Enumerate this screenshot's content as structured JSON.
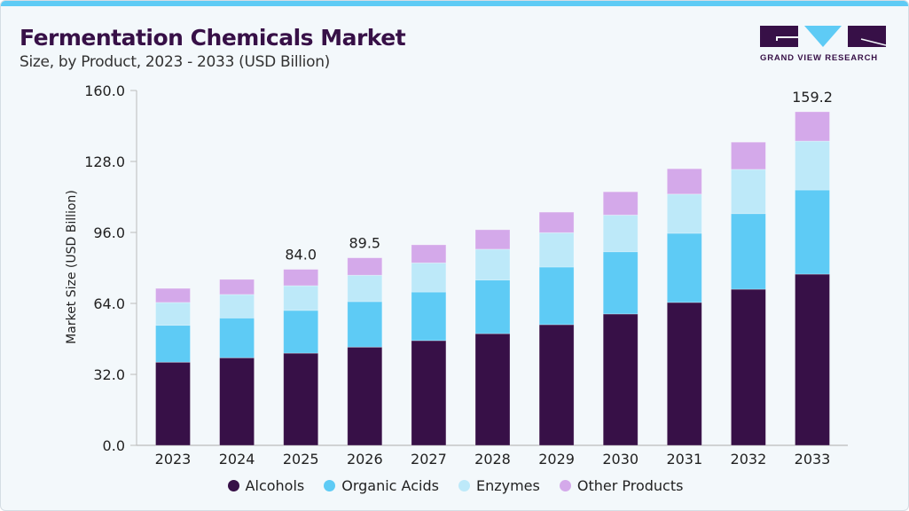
{
  "header": {
    "title": "Fermentation Chemicals Market",
    "subtitle": "Size, by Product, 2023 - 2033 (USD Billion)"
  },
  "logo": {
    "text": "GRAND VIEW RESEARCH",
    "colors": {
      "dark": "#371047",
      "accent": "#5ecbf5"
    }
  },
  "chart_data": {
    "type": "bar",
    "stacked": true,
    "title": "Fermentation Chemicals Market",
    "subtitle": "Size, by Product, 2023 - 2033 (USD Billion)",
    "xlabel": "",
    "ylabel": "Market Size (USD Billion)",
    "yticks": [
      "0.0",
      "32.0",
      "64.0",
      "96.0",
      "128.0",
      "160.0"
    ],
    "ylim": [
      0,
      160
    ],
    "grid": false,
    "legend_position": "bottom",
    "categories": [
      "2023",
      "2024",
      "2025",
      "2026",
      "2027",
      "2028",
      "2029",
      "2030",
      "2031",
      "2032",
      "2033"
    ],
    "series": [
      {
        "name": "Alcohols",
        "color": "#371047",
        "values": [
          39.7,
          41.8,
          44.0,
          46.9,
          50.0,
          53.3,
          57.6,
          62.7,
          68.2,
          74.5,
          81.7
        ]
      },
      {
        "name": "Organic Acids",
        "color": "#5ecbf5",
        "values": [
          17.6,
          19.0,
          20.4,
          21.7,
          23.2,
          25.6,
          27.5,
          29.7,
          33.0,
          36.1,
          40.2
        ]
      },
      {
        "name": "Enzymes",
        "color": "#bde9f9",
        "values": [
          10.9,
          11.2,
          11.8,
          12.6,
          13.9,
          14.7,
          16.4,
          17.5,
          18.7,
          21.1,
          23.3
        ]
      },
      {
        "name": "Other Products",
        "color": "#d4a9ea",
        "values": [
          6.7,
          7.2,
          7.8,
          8.3,
          8.6,
          9.3,
          9.8,
          11.1,
          12.1,
          13.0,
          14.0
        ]
      }
    ],
    "data_labels": [
      {
        "category": "2025",
        "text": "84.0"
      },
      {
        "category": "2026",
        "text": "89.5"
      },
      {
        "category": "2033",
        "text": "159.2"
      }
    ]
  }
}
